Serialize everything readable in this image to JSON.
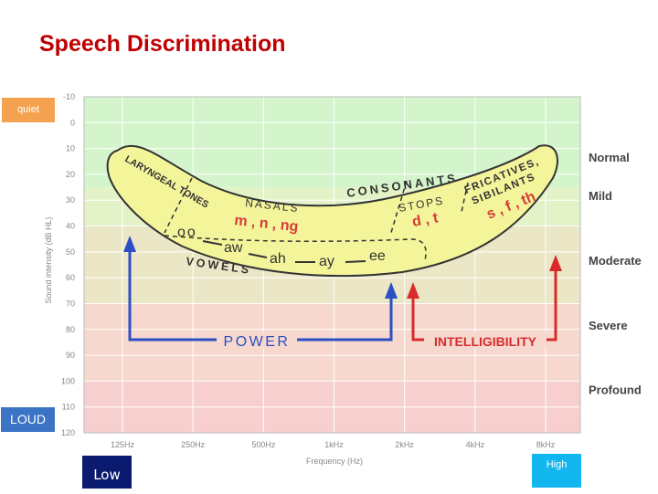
{
  "page": {
    "title": "Speech Discrimination"
  },
  "badges": {
    "quiet": "quiet",
    "loud": "LOUD",
    "low": "Low",
    "high": "High"
  },
  "chart_data": {
    "type": "audiogram",
    "title": "Speech Discrimination",
    "xlabel": "Frequency (Hz)",
    "ylabel": "Sound intensity (dB HL)",
    "x_ticks": [
      "125Hz",
      "250Hz",
      "500Hz",
      "1kHz",
      "2kHz",
      "4kHz",
      "8kHz"
    ],
    "y_ticks": [
      -10,
      0,
      10,
      20,
      30,
      40,
      50,
      60,
      70,
      80,
      90,
      100,
      110,
      120
    ],
    "ylim": [
      -10,
      120
    ],
    "bands": [
      {
        "name": "Normal",
        "from": -10,
        "to": 25,
        "color": "#d4f5cc",
        "label_color": "#0a7f2e"
      },
      {
        "name": "Mild",
        "from": 25,
        "to": 40,
        "color": "#e3f3c7",
        "label_color": "#2e7d32"
      },
      {
        "name": "Moderate",
        "from": 40,
        "to": 70,
        "color": "#ebe6c5",
        "label_color": "#556b1f"
      },
      {
        "name": "Severe",
        "from": 70,
        "to": 100,
        "color": "#f6d8ce",
        "label_color": "#c05030"
      },
      {
        "name": "Profound",
        "from": 100,
        "to": 120,
        "color": "#f8cfcf",
        "label_color": "#c03030"
      }
    ],
    "annotations": {
      "laryngeal": "LARYNGEAL TONES",
      "nasals": "NASALS",
      "nasal_sounds": "m , n , ng",
      "consonants": "CONSONANTS",
      "stops": "STOPS",
      "stop_sounds": "d , t",
      "fricatives": "FRICATIVES,",
      "sibilants": "SIBILANTS",
      "fric_sounds": "s , f , th",
      "vowel_oo": "oo",
      "vowel_aw": "aw",
      "vowel_ah": "ah",
      "vowel_ay": "ay",
      "vowel_ee": "ee",
      "vowels": "VOWELS",
      "power": "POWER",
      "intelligibility": "INTELLIGIBILITY"
    },
    "colors": {
      "banana": "#f4f59a",
      "power_arrow": "#2b4fc4",
      "intel_arrow": "#d92b2b",
      "sounds": "#d63a3a"
    }
  }
}
